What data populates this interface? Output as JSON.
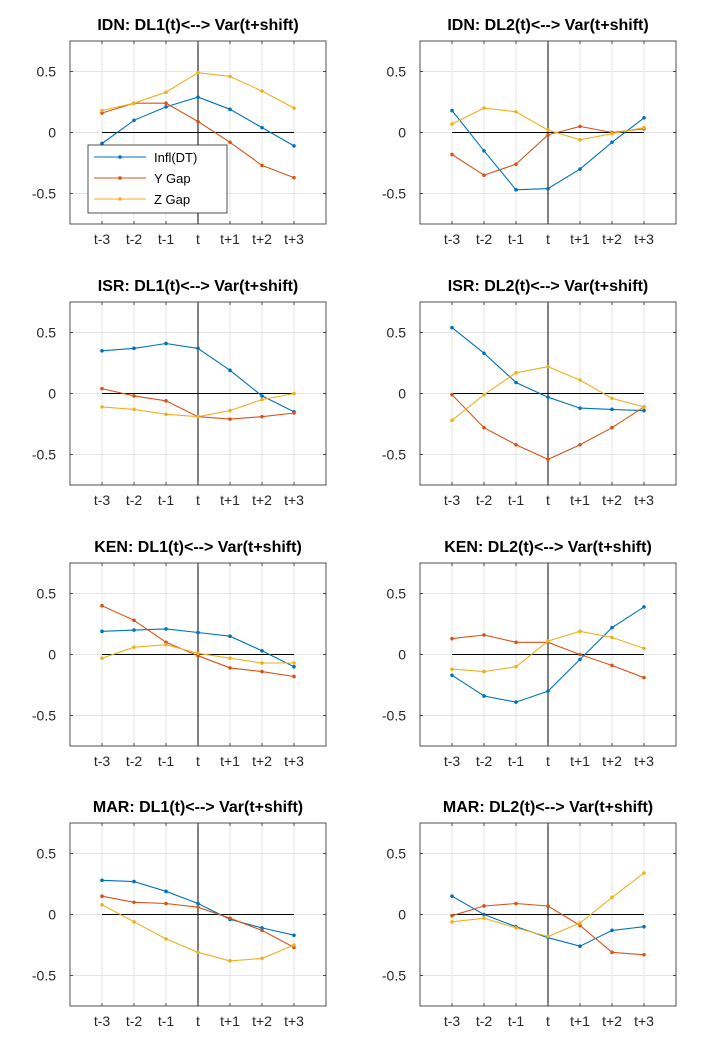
{
  "colors": {
    "blue": "#0072BD",
    "red": "#D95319",
    "yellow": "#EDB120",
    "grid": "#e6e6e6",
    "axis": "#262626"
  },
  "legend_panel": 0,
  "chart_data": [
    {
      "type": "line",
      "title": "IDN: DL1(t)<--> Var(t+shift)",
      "categories": [
        "t-3",
        "t-2",
        "t-1",
        "t",
        "t+1",
        "t+2",
        "t+3"
      ],
      "ylim": [
        -0.75,
        0.75
      ],
      "yticks": [
        0.5,
        0,
        -0.5
      ],
      "yticklabels": [
        "0.5",
        "0",
        "-0.5"
      ],
      "grid": true,
      "legend": {
        "location": "lower-left",
        "entries": [
          "Infl(DT)",
          "Y Gap",
          "Z Gap"
        ]
      },
      "series": [
        {
          "name": "Infl(DT)",
          "color": "blue",
          "values": [
            -0.09,
            0.1,
            0.21,
            0.29,
            0.19,
            0.04,
            -0.11
          ]
        },
        {
          "name": "Y Gap",
          "color": "red",
          "values": [
            0.16,
            0.24,
            0.24,
            0.09,
            -0.08,
            -0.27,
            -0.37
          ]
        },
        {
          "name": "Z Gap",
          "color": "yellow",
          "values": [
            0.18,
            0.24,
            0.33,
            0.49,
            0.46,
            0.34,
            0.2
          ]
        }
      ]
    },
    {
      "type": "line",
      "title": "IDN: DL2(t)<--> Var(t+shift)",
      "categories": [
        "t-3",
        "t-2",
        "t-1",
        "t",
        "t+1",
        "t+2",
        "t+3"
      ],
      "ylim": [
        -0.75,
        0.75
      ],
      "yticks": [
        0.5,
        0,
        -0.5
      ],
      "yticklabels": [
        "0.5",
        "0",
        "-0.5"
      ],
      "grid": true,
      "series": [
        {
          "name": "Infl(DT)",
          "color": "blue",
          "values": [
            0.18,
            -0.15,
            -0.47,
            -0.46,
            -0.3,
            -0.08,
            0.12
          ]
        },
        {
          "name": "Y Gap",
          "color": "red",
          "values": [
            -0.18,
            -0.35,
            -0.26,
            -0.02,
            0.05,
            0.0,
            0.03
          ]
        },
        {
          "name": "Z Gap",
          "color": "yellow",
          "values": [
            0.07,
            0.2,
            0.17,
            0.02,
            -0.06,
            -0.01,
            0.04
          ]
        }
      ]
    },
    {
      "type": "line",
      "title": "ISR: DL1(t)<--> Var(t+shift)",
      "categories": [
        "t-3",
        "t-2",
        "t-1",
        "t",
        "t+1",
        "t+2",
        "t+3"
      ],
      "ylim": [
        -0.75,
        0.75
      ],
      "yticks": [
        0.5,
        0,
        -0.5
      ],
      "yticklabels": [
        "0.5",
        "0",
        "-0.5"
      ],
      "grid": true,
      "series": [
        {
          "name": "Infl(DT)",
          "color": "blue",
          "values": [
            0.35,
            0.37,
            0.41,
            0.37,
            0.19,
            -0.02,
            -0.15
          ]
        },
        {
          "name": "Y Gap",
          "color": "red",
          "values": [
            0.04,
            -0.02,
            -0.06,
            -0.19,
            -0.21,
            -0.19,
            -0.16
          ]
        },
        {
          "name": "Z Gap",
          "color": "yellow",
          "values": [
            -0.11,
            -0.13,
            -0.17,
            -0.19,
            -0.14,
            -0.05,
            0.0
          ]
        }
      ]
    },
    {
      "type": "line",
      "title": "ISR: DL2(t)<--> Var(t+shift)",
      "categories": [
        "t-3",
        "t-2",
        "t-1",
        "t",
        "t+1",
        "t+2",
        "t+3"
      ],
      "ylim": [
        -0.75,
        0.75
      ],
      "yticks": [
        0.5,
        0,
        -0.5
      ],
      "yticklabels": [
        "0.5",
        "0",
        "-0.5"
      ],
      "grid": true,
      "series": [
        {
          "name": "Infl(DT)",
          "color": "blue",
          "values": [
            0.54,
            0.33,
            0.09,
            -0.03,
            -0.12,
            -0.13,
            -0.14
          ]
        },
        {
          "name": "Y Gap",
          "color": "red",
          "values": [
            -0.01,
            -0.28,
            -0.42,
            -0.54,
            -0.42,
            -0.28,
            -0.11
          ]
        },
        {
          "name": "Z Gap",
          "color": "yellow",
          "values": [
            -0.22,
            -0.01,
            0.17,
            0.22,
            0.11,
            -0.04,
            -0.11
          ]
        }
      ]
    },
    {
      "type": "line",
      "title": "KEN: DL1(t)<--> Var(t+shift)",
      "categories": [
        "t-3",
        "t-2",
        "t-1",
        "t",
        "t+1",
        "t+2",
        "t+3"
      ],
      "ylim": [
        -0.75,
        0.75
      ],
      "yticks": [
        0.5,
        0,
        -0.5
      ],
      "yticklabels": [
        "0.5",
        "0",
        "-0.5"
      ],
      "grid": true,
      "series": [
        {
          "name": "Infl(DT)",
          "color": "blue",
          "values": [
            0.19,
            0.2,
            0.21,
            0.18,
            0.15,
            0.03,
            -0.1
          ]
        },
        {
          "name": "Y Gap",
          "color": "red",
          "values": [
            0.4,
            0.28,
            0.1,
            -0.01,
            -0.11,
            -0.14,
            -0.18
          ]
        },
        {
          "name": "Z Gap",
          "color": "yellow",
          "values": [
            -0.03,
            0.06,
            0.08,
            0.01,
            -0.03,
            -0.07,
            -0.07
          ]
        }
      ]
    },
    {
      "type": "line",
      "title": "KEN: DL2(t)<--> Var(t+shift)",
      "categories": [
        "t-3",
        "t-2",
        "t-1",
        "t",
        "t+1",
        "t+2",
        "t+3"
      ],
      "ylim": [
        -0.75,
        0.75
      ],
      "yticks": [
        0.5,
        0,
        -0.5
      ],
      "yticklabels": [
        "0.5",
        "0",
        "-0.5"
      ],
      "grid": true,
      "series": [
        {
          "name": "Infl(DT)",
          "color": "blue",
          "values": [
            -0.17,
            -0.34,
            -0.39,
            -0.3,
            -0.04,
            0.22,
            0.39
          ]
        },
        {
          "name": "Y Gap",
          "color": "red",
          "values": [
            0.13,
            0.16,
            0.1,
            0.1,
            0.0,
            -0.09,
            -0.19
          ]
        },
        {
          "name": "Z Gap",
          "color": "yellow",
          "values": [
            -0.12,
            -0.14,
            -0.1,
            0.11,
            0.19,
            0.14,
            0.05
          ]
        }
      ]
    },
    {
      "type": "line",
      "title": "MAR: DL1(t)<--> Var(t+shift)",
      "categories": [
        "t-3",
        "t-2",
        "t-1",
        "t",
        "t+1",
        "t+2",
        "t+3"
      ],
      "ylim": [
        -0.75,
        0.75
      ],
      "yticks": [
        0.5,
        0,
        -0.5
      ],
      "yticklabels": [
        "0.5",
        "0",
        "-0.5"
      ],
      "grid": true,
      "series": [
        {
          "name": "Infl(DT)",
          "color": "blue",
          "values": [
            0.28,
            0.27,
            0.19,
            0.09,
            -0.04,
            -0.11,
            -0.17
          ]
        },
        {
          "name": "Y Gap",
          "color": "red",
          "values": [
            0.15,
            0.1,
            0.09,
            0.06,
            -0.03,
            -0.13,
            -0.27
          ]
        },
        {
          "name": "Z Gap",
          "color": "yellow",
          "values": [
            0.08,
            -0.06,
            -0.2,
            -0.31,
            -0.38,
            -0.36,
            -0.25
          ]
        }
      ]
    },
    {
      "type": "line",
      "title": "MAR: DL2(t)<--> Var(t+shift)",
      "categories": [
        "t-3",
        "t-2",
        "t-1",
        "t",
        "t+1",
        "t+2",
        "t+3"
      ],
      "ylim": [
        -0.75,
        0.75
      ],
      "yticks": [
        0.5,
        0,
        -0.5
      ],
      "yticklabels": [
        "0.5",
        "0",
        "-0.5"
      ],
      "grid": true,
      "series": [
        {
          "name": "Infl(DT)",
          "color": "blue",
          "values": [
            0.15,
            0.0,
            -0.1,
            -0.19,
            -0.26,
            -0.13,
            -0.1
          ]
        },
        {
          "name": "Y Gap",
          "color": "red",
          "values": [
            -0.01,
            0.07,
            0.09,
            0.07,
            -0.09,
            -0.31,
            -0.33
          ]
        },
        {
          "name": "Z Gap",
          "color": "yellow",
          "values": [
            -0.06,
            -0.03,
            -0.11,
            -0.18,
            -0.07,
            0.14,
            0.34
          ]
        }
      ]
    }
  ]
}
